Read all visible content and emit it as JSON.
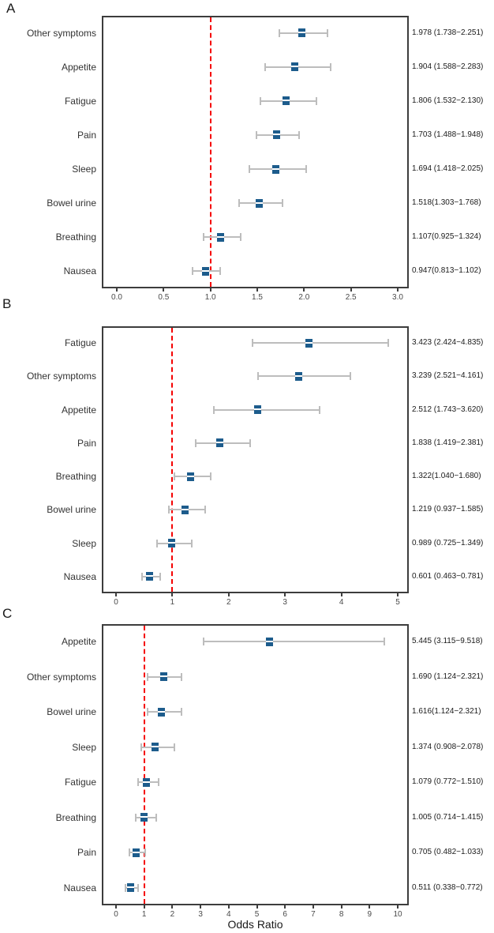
{
  "colors": {
    "marker_blue": "#1d5c8c",
    "ci_gray": "#bdbdbd",
    "reference_red": "#f50000",
    "box_border": "#3d3d3d",
    "text": "#333333"
  },
  "chart_data": {
    "type": "forest",
    "xlabel": "Odds Ratio",
    "ref_line_value": 1,
    "panels": [
      {
        "label": "A",
        "xlim": [
          -0.16,
          3.12
        ],
        "xtick_values": [
          0,
          0.5,
          1,
          1.5,
          2,
          2.5,
          3
        ],
        "xtick_labels": [
          "0.0",
          "0.5",
          "1.0",
          "1.5",
          "2.0",
          "2.5",
          "3.0"
        ],
        "rows": [
          {
            "category": "Other symptoms",
            "or": 1.978,
            "ci_low": 1.738,
            "ci_high": 2.251,
            "display": "1.978 (1.738−2.251)"
          },
          {
            "category": "Appetite",
            "or": 1.904,
            "ci_low": 1.588,
            "ci_high": 2.283,
            "display": "1.904 (1.588−2.283)"
          },
          {
            "category": "Fatigue",
            "or": 1.806,
            "ci_low": 1.532,
            "ci_high": 2.13,
            "display": "1.806 (1.532−2.130)"
          },
          {
            "category": "Pain",
            "or": 1.703,
            "ci_low": 1.488,
            "ci_high": 1.948,
            "display": "1.703 (1.488−1.948)"
          },
          {
            "category": "Sleep",
            "or": 1.694,
            "ci_low": 1.418,
            "ci_high": 2.025,
            "display": "1.694 (1.418−2.025)"
          },
          {
            "category": "Bowel urine",
            "or": 1.518,
            "ci_low": 1.303,
            "ci_high": 1.768,
            "display": "1.518(1.303−1.768)"
          },
          {
            "category": "Breathing",
            "or": 1.107,
            "ci_low": 0.925,
            "ci_high": 1.324,
            "display": "1.107(0.925−1.324)"
          },
          {
            "category": "Nausea",
            "or": 0.947,
            "ci_low": 0.813,
            "ci_high": 1.102,
            "display": "0.947(0.813−1.102)"
          }
        ]
      },
      {
        "label": "B",
        "xlim": [
          -0.25,
          5.21
        ],
        "xtick_values": [
          0,
          1,
          2,
          3,
          4,
          5
        ],
        "xtick_labels": [
          "0",
          "1",
          "2",
          "3",
          "4",
          "5"
        ],
        "rows": [
          {
            "category": "Fatigue",
            "or": 3.423,
            "ci_low": 2.424,
            "ci_high": 4.835,
            "display": "3.423 (2.424−4.835)"
          },
          {
            "category": "Other symptoms",
            "or": 3.239,
            "ci_low": 2.521,
            "ci_high": 4.161,
            "display": "3.239 (2.521−4.161)"
          },
          {
            "category": "Appetite",
            "or": 2.512,
            "ci_low": 1.743,
            "ci_high": 3.62,
            "display": "2.512 (1.743−3.620)"
          },
          {
            "category": "Pain",
            "or": 1.838,
            "ci_low": 1.419,
            "ci_high": 2.381,
            "display": "1.838 (1.419−2.381)"
          },
          {
            "category": "Breathing",
            "or": 1.322,
            "ci_low": 1.04,
            "ci_high": 1.68,
            "display": "1.322(1.040−1.680)"
          },
          {
            "category": "Bowel urine",
            "or": 1.219,
            "ci_low": 0.937,
            "ci_high": 1.585,
            "display": "1.219 (0.937−1.585)"
          },
          {
            "category": "Sleep",
            "or": 0.989,
            "ci_low": 0.725,
            "ci_high": 1.349,
            "display": "0.989 (0.725−1.349)"
          },
          {
            "category": "Nausea",
            "or": 0.601,
            "ci_low": 0.463,
            "ci_high": 0.781,
            "display": "0.601 (0.463−0.781)"
          }
        ]
      },
      {
        "label": "C",
        "xlim": [
          -0.5,
          10.4
        ],
        "xtick_values": [
          0,
          1,
          2,
          3,
          4,
          5,
          6,
          7,
          8,
          9,
          10
        ],
        "xtick_labels": [
          "0",
          "1",
          "2",
          "3",
          "4",
          "5",
          "6",
          "7",
          "8",
          "9",
          "10"
        ],
        "rows": [
          {
            "category": "Appetite",
            "or": 5.445,
            "ci_low": 3.115,
            "ci_high": 9.518,
            "display": "5.445 (3.115−9.518)"
          },
          {
            "category": "Other symptoms",
            "or": 1.69,
            "ci_low": 1.124,
            "ci_high": 2.321,
            "display": "1.690 (1.124−2.321)"
          },
          {
            "category": "Bowel urine",
            "or": 1.616,
            "ci_low": 1.124,
            "ci_high": 2.321,
            "display": "1.616(1.124−2.321)"
          },
          {
            "category": "Sleep",
            "or": 1.374,
            "ci_low": 0.908,
            "ci_high": 2.078,
            "display": "1.374 (0.908−2.078)"
          },
          {
            "category": "Fatigue",
            "or": 1.079,
            "ci_low": 0.772,
            "ci_high": 1.51,
            "display": "1.079 (0.772−1.510)"
          },
          {
            "category": "Breathing",
            "or": 1.005,
            "ci_low": 0.714,
            "ci_high": 1.415,
            "display": "1.005 (0.714−1.415)"
          },
          {
            "category": "Pain",
            "or": 0.705,
            "ci_low": 0.482,
            "ci_high": 1.033,
            "display": "0.705 (0.482−1.033)"
          },
          {
            "category": "Nausea",
            "or": 0.511,
            "ci_low": 0.338,
            "ci_high": 0.772,
            "display": "0.511 (0.338−0.772)"
          }
        ]
      }
    ]
  }
}
